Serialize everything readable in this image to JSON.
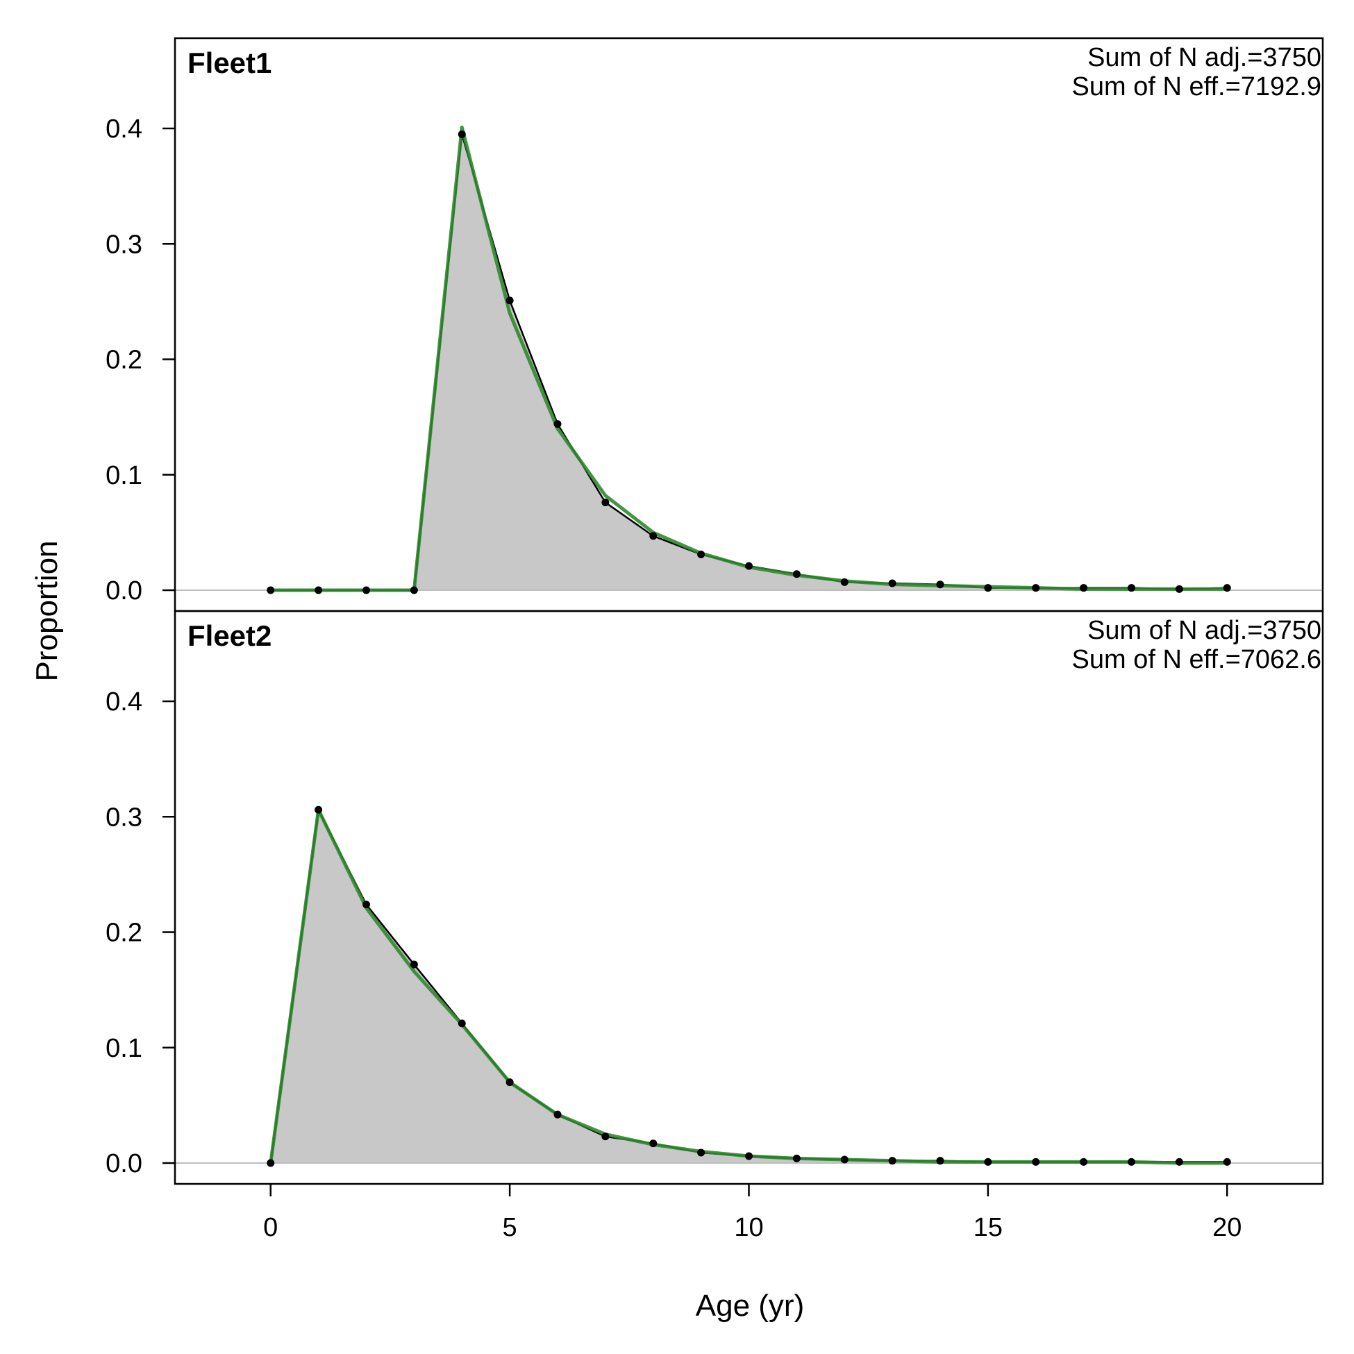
{
  "colors": {
    "observed_fill": "#c8c8c8",
    "observed_line": "#000000",
    "expected_line": "#2e8b2e",
    "zero_line": "#bebebe",
    "frame": "#000000"
  },
  "chart_data": {
    "type": "area",
    "xlabel": "Age (yr)",
    "ylabel": "Proportion",
    "xlim": [
      -2,
      22
    ],
    "ylim": [
      0,
      0.4
    ],
    "x_ticks": [
      0,
      5,
      10,
      15,
      20
    ],
    "y_ticks": [
      0.0,
      0.1,
      0.2,
      0.3,
      0.4
    ],
    "x_tick_labels": [
      "0",
      "5",
      "10",
      "15",
      "20"
    ],
    "y_tick_labels": [
      "0.0",
      "0.1",
      "0.2",
      "0.3",
      "0.4"
    ],
    "grid": false,
    "legend": "none",
    "x": [
      0,
      1,
      2,
      3,
      4,
      5,
      6,
      7,
      8,
      9,
      10,
      11,
      12,
      13,
      14,
      15,
      16,
      17,
      18,
      19,
      20
    ],
    "panels": [
      {
        "title": "Fleet1",
        "notes": [
          "Sum of N adj.=3750",
          "Sum of N eff.=7192.9"
        ],
        "observed": [
          0,
          0,
          0,
          0,
          0.395,
          0.251,
          0.144,
          0.076,
          0.047,
          0.031,
          0.021,
          0.014,
          0.007,
          0.006,
          0.005,
          0.002,
          0.002,
          0.002,
          0.002,
          0.001,
          0.002
        ],
        "expected": [
          0,
          0,
          0,
          0,
          0.401,
          0.24,
          0.14,
          0.082,
          0.05,
          0.032,
          0.02,
          0.013,
          0.008,
          0.005,
          0.004,
          0.003,
          0.002,
          0.001,
          0.001,
          0.001,
          0.001
        ]
      },
      {
        "title": "Fleet2",
        "notes": [
          "Sum of N adj.=3750",
          "Sum of N eff.=7062.6"
        ],
        "observed": [
          0,
          0.306,
          0.224,
          0.172,
          0.121,
          0.07,
          0.042,
          0.023,
          0.017,
          0.009,
          0.006,
          0.004,
          0.003,
          0.002,
          0.002,
          0.001,
          0.001,
          0.001,
          0.001,
          0.001,
          0.001
        ],
        "expected": [
          0,
          0.306,
          0.221,
          0.166,
          0.12,
          0.07,
          0.042,
          0.025,
          0.016,
          0.01,
          0.006,
          0.004,
          0.003,
          0.002,
          0.001,
          0.001,
          0.001,
          0.001,
          0.001,
          0.0,
          0.0
        ]
      }
    ]
  }
}
